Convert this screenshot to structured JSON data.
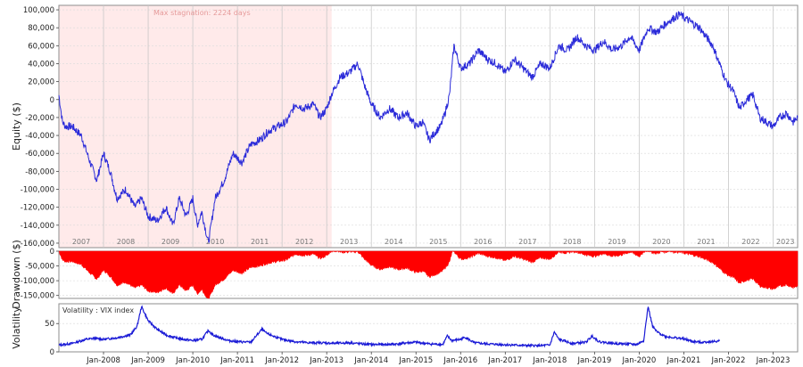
{
  "colors": {
    "equity_line": "#2b2bd9",
    "volatility_line": "#1a1ad6",
    "drawdown_fill": "#ff0000",
    "stagnation_fill": "#ffeaea",
    "stagnation_text": "#e59a9a",
    "grid": "#d9d9d9",
    "year_divider": "#c8c8c8",
    "panel_border": "#8c8c8c"
  },
  "chart_data": [
    {
      "id": "equity",
      "type": "line",
      "ylabel": "Equity ($)",
      "ylim": [
        -165000,
        105000
      ],
      "yticks": [
        100000,
        80000,
        60000,
        40000,
        20000,
        0,
        -20000,
        -40000,
        -60000,
        -80000,
        -100000,
        -120000,
        -140000,
        -160000
      ],
      "ytick_labels": [
        "100,000",
        "80,000",
        "60,000",
        "40,000",
        "20,000",
        "0",
        "-20,000",
        "-40,000",
        "-60,000",
        "-80,000",
        "-100,000",
        "-120,000",
        "-140,000",
        "-160,000"
      ],
      "xlim": [
        2007.0,
        2023.55
      ],
      "year_labels": [
        "2007",
        "2008",
        "2009",
        "2010",
        "2011",
        "2012",
        "2013",
        "2014",
        "2015",
        "2016",
        "2017",
        "2018",
        "2019",
        "2020",
        "2021",
        "2022",
        "2023"
      ],
      "annotation": "Max stagnation: 2224 days",
      "stagnation_range": [
        2007.0,
        2013.1
      ],
      "x": [
        2007.0,
        2007.08,
        2007.15,
        2007.3,
        2007.5,
        2007.7,
        2007.85,
        2008.0,
        2008.15,
        2008.3,
        2008.5,
        2008.7,
        2008.85,
        2009.0,
        2009.2,
        2009.4,
        2009.55,
        2009.7,
        2009.85,
        2010.0,
        2010.1,
        2010.2,
        2010.35,
        2010.5,
        2010.7,
        2010.9,
        2011.1,
        2011.3,
        2011.5,
        2011.7,
        2011.9,
        2012.1,
        2012.3,
        2012.5,
        2012.7,
        2012.85,
        2013.0,
        2013.1,
        2013.3,
        2013.5,
        2013.7,
        2013.85,
        2014.0,
        2014.2,
        2014.4,
        2014.6,
        2014.8,
        2015.0,
        2015.15,
        2015.3,
        2015.45,
        2015.55,
        2015.65,
        2015.75,
        2015.85,
        2016.0,
        2016.2,
        2016.4,
        2016.6,
        2016.8,
        2017.0,
        2017.2,
        2017.4,
        2017.6,
        2017.8,
        2018.0,
        2018.2,
        2018.4,
        2018.6,
        2018.8,
        2019.0,
        2019.2,
        2019.4,
        2019.6,
        2019.8,
        2020.0,
        2020.2,
        2020.4,
        2020.6,
        2020.75,
        2020.9,
        2021.05,
        2021.2,
        2021.35,
        2021.5,
        2021.65,
        2021.8,
        2021.95,
        2022.1,
        2022.25,
        2022.4,
        2022.55,
        2022.7,
        2022.85,
        2023.0,
        2023.15,
        2023.3,
        2023.45,
        2023.55
      ],
      "y": [
        5000,
        -25000,
        -30000,
        -30000,
        -40000,
        -70000,
        -90000,
        -60000,
        -80000,
        -110000,
        -100000,
        -120000,
        -110000,
        -130000,
        -135000,
        -120000,
        -140000,
        -110000,
        -130000,
        -110000,
        -140000,
        -125000,
        -160000,
        -110000,
        -90000,
        -60000,
        -70000,
        -50000,
        -45000,
        -35000,
        -30000,
        -25000,
        -5000,
        -10000,
        -5000,
        -20000,
        -10000,
        5000,
        25000,
        30000,
        40000,
        15000,
        -5000,
        -20000,
        -10000,
        -20000,
        -15000,
        -30000,
        -25000,
        -45000,
        -35000,
        -30000,
        -15000,
        5000,
        60000,
        35000,
        40000,
        55000,
        45000,
        40000,
        30000,
        45000,
        35000,
        25000,
        40000,
        35000,
        60000,
        55000,
        70000,
        60000,
        55000,
        65000,
        55000,
        60000,
        70000,
        55000,
        80000,
        75000,
        85000,
        90000,
        95000,
        90000,
        85000,
        80000,
        70000,
        60000,
        40000,
        20000,
        10000,
        -10000,
        0,
        5000,
        -20000,
        -25000,
        -30000,
        -20000,
        -15000,
        -25000,
        -20000
      ]
    },
    {
      "id": "drawdown",
      "type": "area",
      "ylabel": "Drawdown ($)",
      "ylim": [
        -160000,
        0
      ],
      "yticks": [
        0,
        -50000,
        -100000,
        -150000
      ],
      "ytick_labels": [
        "0",
        "-50,000",
        "-100,000",
        "-150,000"
      ],
      "xlim": [
        2007.0,
        2023.55
      ]
    },
    {
      "id": "volatility",
      "type": "line",
      "ylabel": "Volatility",
      "legend": "Volatility : VIX index",
      "ylim": [
        0,
        85
      ],
      "yticks": [
        0,
        50
      ],
      "ytick_labels": [
        "0",
        "50"
      ],
      "xlim": [
        2007.0,
        2023.55
      ],
      "x_tick_labels": [
        "Jan-2008",
        "Jan-2009",
        "Jan-2010",
        "Jan-2011",
        "Jan-2012",
        "Jan-2013",
        "Jan-2014",
        "Jan-2015",
        "Jan-2016",
        "Jan-2017",
        "Jan-2018",
        "Jan-2019",
        "Jan-2020",
        "Jan-2021",
        "Jan-2022",
        "Jan-2023"
      ],
      "x": [
        2007.0,
        2007.3,
        2007.6,
        2007.8,
        2008.0,
        2008.3,
        2008.6,
        2008.75,
        2008.85,
        2009.0,
        2009.2,
        2009.4,
        2009.6,
        2009.8,
        2010.0,
        2010.2,
        2010.35,
        2010.45,
        2010.6,
        2010.8,
        2011.0,
        2011.3,
        2011.55,
        2011.65,
        2011.8,
        2012.0,
        2012.3,
        2012.6,
        2012.9,
        2013.2,
        2013.5,
        2013.8,
        2014.0,
        2014.3,
        2014.6,
        2014.8,
        2015.0,
        2015.3,
        2015.6,
        2015.7,
        2015.8,
        2016.0,
        2016.1,
        2016.3,
        2016.6,
        2016.9,
        2017.2,
        2017.5,
        2017.8,
        2018.0,
        2018.1,
        2018.2,
        2018.5,
        2018.8,
        2018.95,
        2019.1,
        2019.4,
        2019.7,
        2019.95,
        2020.1,
        2020.2,
        2020.3,
        2020.4,
        2020.6,
        2020.8,
        2021.0,
        2021.2,
        2021.4,
        2021.6,
        2021.8
      ],
      "y": [
        12,
        15,
        22,
        24,
        22,
        25,
        30,
        45,
        80,
        55,
        40,
        30,
        25,
        22,
        20,
        22,
        38,
        30,
        25,
        20,
        18,
        17,
        40,
        33,
        28,
        22,
        18,
        16,
        16,
        15,
        16,
        14,
        13,
        13,
        14,
        16,
        17,
        14,
        13,
        28,
        20,
        22,
        26,
        16,
        14,
        13,
        12,
        11,
        11,
        12,
        35,
        22,
        15,
        17,
        28,
        18,
        15,
        14,
        13,
        20,
        80,
        45,
        35,
        27,
        25,
        23,
        18,
        17,
        18,
        19
      ]
    }
  ]
}
